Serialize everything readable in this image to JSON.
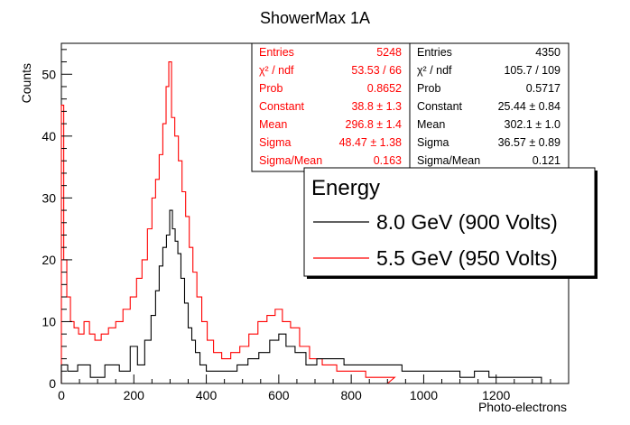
{
  "chart_data": {
    "type": "histogram",
    "title": "ShowerMax 1A",
    "xlabel": "Photo-electrons",
    "ylabel": "Counts",
    "xlim": [
      0,
      1400
    ],
    "ylim": [
      0,
      55
    ],
    "x_ticks": [
      0,
      200,
      400,
      600,
      800,
      1000,
      1200
    ],
    "y_ticks": [
      0,
      10,
      20,
      30,
      40,
      50
    ],
    "grid": false,
    "legend": {
      "title": "Energy",
      "placement": "right",
      "entries": [
        {
          "label": "8.0 GeV (900 Volts)",
          "color": "#000000"
        },
        {
          "label": "5.5 GeV (950 Volts)",
          "color": "#ff0000"
        }
      ]
    },
    "series": [
      {
        "name": "8.0 GeV (900 Volts)",
        "color": "#000000",
        "fit": {
          "constant": 25.44,
          "mean": 302.1,
          "sigma": 36.57
        },
        "stats": {
          "color": "#000000",
          "rows": [
            {
              "label": "Entries",
              "value": "4350"
            },
            {
              "label": "χ² / ndf",
              "value": "105.7 / 109"
            },
            {
              "label": "Prob",
              "value": "0.5717"
            },
            {
              "label": "Constant",
              "value": "25.44 ± 0.84"
            },
            {
              "label": "Mean",
              "value": "302.1 ± 1.0"
            },
            {
              "label": "Sigma",
              "value": "36.57 ± 0.89"
            },
            {
              "label": "Sigma/Mean",
              "value": "0.121"
            }
          ]
        },
        "bins": [
          {
            "x": 5,
            "y": 3
          },
          {
            "x": 30,
            "y": 2
          },
          {
            "x": 60,
            "y": 3
          },
          {
            "x": 100,
            "y": 1
          },
          {
            "x": 140,
            "y": 3
          },
          {
            "x": 180,
            "y": 2
          },
          {
            "x": 200,
            "y": 6
          },
          {
            "x": 220,
            "y": 3
          },
          {
            "x": 240,
            "y": 7
          },
          {
            "x": 255,
            "y": 11
          },
          {
            "x": 265,
            "y": 15
          },
          {
            "x": 275,
            "y": 19
          },
          {
            "x": 285,
            "y": 22
          },
          {
            "x": 295,
            "y": 24
          },
          {
            "x": 303,
            "y": 28
          },
          {
            "x": 310,
            "y": 25
          },
          {
            "x": 318,
            "y": 23
          },
          {
            "x": 325,
            "y": 21
          },
          {
            "x": 335,
            "y": 17
          },
          {
            "x": 345,
            "y": 13
          },
          {
            "x": 355,
            "y": 9
          },
          {
            "x": 365,
            "y": 7
          },
          {
            "x": 375,
            "y": 5
          },
          {
            "x": 390,
            "y": 3
          },
          {
            "x": 410,
            "y": 2
          },
          {
            "x": 440,
            "y": 2
          },
          {
            "x": 470,
            "y": 2
          },
          {
            "x": 500,
            "y": 3
          },
          {
            "x": 530,
            "y": 4
          },
          {
            "x": 560,
            "y": 5
          },
          {
            "x": 590,
            "y": 7
          },
          {
            "x": 610,
            "y": 8
          },
          {
            "x": 630,
            "y": 6
          },
          {
            "x": 660,
            "y": 5
          },
          {
            "x": 690,
            "y": 3
          },
          {
            "x": 720,
            "y": 4
          },
          {
            "x": 760,
            "y": 4
          },
          {
            "x": 800,
            "y": 3
          },
          {
            "x": 840,
            "y": 3
          },
          {
            "x": 880,
            "y": 3
          },
          {
            "x": 920,
            "y": 3
          },
          {
            "x": 960,
            "y": 2
          },
          {
            "x": 1000,
            "y": 2
          },
          {
            "x": 1040,
            "y": 2
          },
          {
            "x": 1080,
            "y": 2
          },
          {
            "x": 1120,
            "y": 1
          },
          {
            "x": 1160,
            "y": 2
          },
          {
            "x": 1200,
            "y": 1
          },
          {
            "x": 1250,
            "y": 1
          },
          {
            "x": 1300,
            "y": 1
          },
          {
            "x": 1350,
            "y": 0
          }
        ]
      },
      {
        "name": "5.5 GeV (950 Volts)",
        "color": "#ff0000",
        "fit": {
          "constant": 38.8,
          "mean": 296.8,
          "sigma": 48.47
        },
        "stats": {
          "color": "#ff0000",
          "rows": [
            {
              "label": "Entries",
              "value": "5248"
            },
            {
              "label": "χ² / ndf",
              "value": "53.53 / 66"
            },
            {
              "label": "Prob",
              "value": "0.8652"
            },
            {
              "label": "Constant",
              "value": "38.8 ± 1.3"
            },
            {
              "label": "Mean",
              "value": "296.8 ± 1.4"
            },
            {
              "label": "Sigma",
              "value": "48.47 ± 1.38"
            },
            {
              "label": "Sigma/Mean",
              "value": "0.163"
            }
          ]
        },
        "bins": [
          {
            "x": 3,
            "y": 45
          },
          {
            "x": 10,
            "y": 20
          },
          {
            "x": 20,
            "y": 14
          },
          {
            "x": 30,
            "y": 10
          },
          {
            "x": 40,
            "y": 9
          },
          {
            "x": 55,
            "y": 8
          },
          {
            "x": 70,
            "y": 10
          },
          {
            "x": 85,
            "y": 8
          },
          {
            "x": 100,
            "y": 7
          },
          {
            "x": 120,
            "y": 8
          },
          {
            "x": 140,
            "y": 9
          },
          {
            "x": 160,
            "y": 10
          },
          {
            "x": 180,
            "y": 12
          },
          {
            "x": 200,
            "y": 14
          },
          {
            "x": 215,
            "y": 17
          },
          {
            "x": 230,
            "y": 20
          },
          {
            "x": 245,
            "y": 25
          },
          {
            "x": 255,
            "y": 30
          },
          {
            "x": 265,
            "y": 33
          },
          {
            "x": 275,
            "y": 37
          },
          {
            "x": 285,
            "y": 42
          },
          {
            "x": 293,
            "y": 48
          },
          {
            "x": 300,
            "y": 52
          },
          {
            "x": 308,
            "y": 43
          },
          {
            "x": 318,
            "y": 40
          },
          {
            "x": 328,
            "y": 36
          },
          {
            "x": 338,
            "y": 31
          },
          {
            "x": 348,
            "y": 27
          },
          {
            "x": 358,
            "y": 22
          },
          {
            "x": 368,
            "y": 18
          },
          {
            "x": 380,
            "y": 14
          },
          {
            "x": 395,
            "y": 10
          },
          {
            "x": 410,
            "y": 7
          },
          {
            "x": 430,
            "y": 5
          },
          {
            "x": 455,
            "y": 4
          },
          {
            "x": 480,
            "y": 5
          },
          {
            "x": 505,
            "y": 6
          },
          {
            "x": 530,
            "y": 8
          },
          {
            "x": 555,
            "y": 10
          },
          {
            "x": 580,
            "y": 11
          },
          {
            "x": 600,
            "y": 12
          },
          {
            "x": 620,
            "y": 10
          },
          {
            "x": 645,
            "y": 9
          },
          {
            "x": 670,
            "y": 6
          },
          {
            "x": 700,
            "y": 4
          },
          {
            "x": 740,
            "y": 3
          },
          {
            "x": 780,
            "y": 2
          },
          {
            "x": 820,
            "y": 2
          },
          {
            "x": 860,
            "y": 1
          },
          {
            "x": 900,
            "y": 1
          }
        ]
      }
    ]
  }
}
